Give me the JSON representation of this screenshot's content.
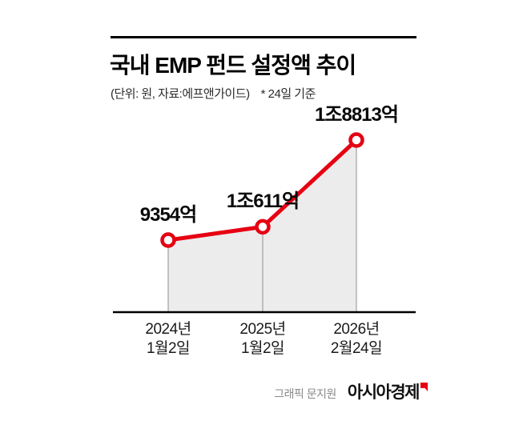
{
  "header": {
    "title": "국내 EMP 펀드 설정액 추이",
    "subtitle": "(단위: 원, 자료:에프앤가이드)",
    "note": "* 24일 기준"
  },
  "chart_data": {
    "type": "line",
    "title": "국내 EMP 펀드 설정액 추이",
    "categories": [
      {
        "line1": "2024년",
        "line2": "1월2일"
      },
      {
        "line1": "2025년",
        "line2": "1월2일"
      },
      {
        "line1": "2026년",
        "line2": "2월24일"
      }
    ],
    "values": [
      9354,
      10611,
      18813
    ],
    "value_labels": [
      "9354억",
      "1조611억",
      "1조8813억"
    ],
    "line_color": "#e60012",
    "area_color": "#ececec",
    "marker": "open-circle",
    "legend": "none",
    "grid": "off"
  },
  "footer": {
    "credit": "그래픽 문지원",
    "brand": "아시아경제"
  }
}
